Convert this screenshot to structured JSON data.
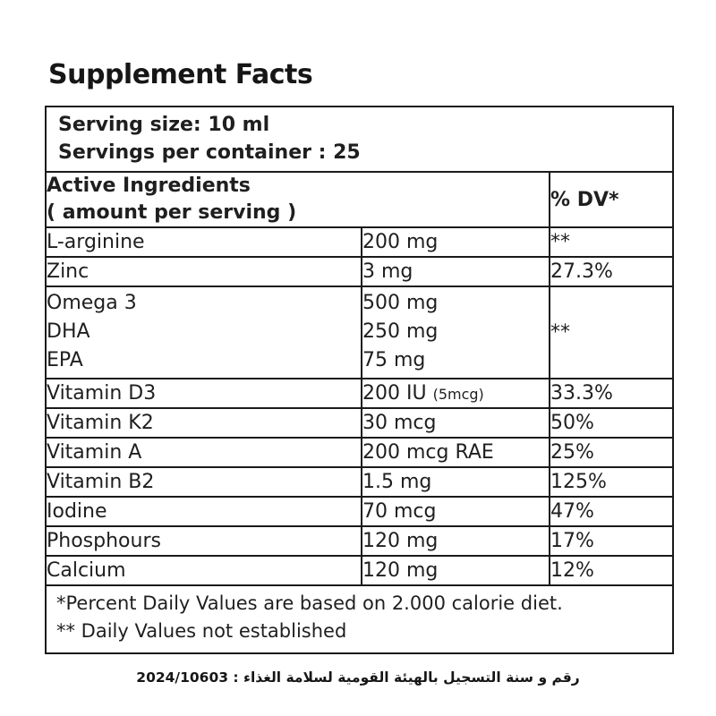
{
  "title": "Supplement Facts",
  "colors": {
    "text": "#1f1f1f",
    "border": "#1a1a1a",
    "background": "#ffffff"
  },
  "serving": {
    "size_line": "Serving size: 10 ml",
    "container_line": "Servings per container : 25"
  },
  "table": {
    "header": {
      "col1_line1": "Active Ingredients",
      "col1_line2": "( amount per serving )",
      "dv_label": "% DV*"
    },
    "rows": [
      {
        "name": "L-arginine",
        "amount": "200 mg",
        "dv": "**"
      },
      {
        "name": "Zinc",
        "amount": "3 mg",
        "dv": "27.3%"
      },
      {
        "name_lines": [
          "Omega 3",
          "DHA",
          "EPA"
        ],
        "amount_lines": [
          "500 mg",
          "250 mg",
          "75 mg"
        ],
        "dv": "**"
      },
      {
        "name": "Vitamin D3",
        "amount": "200 IU",
        "amount_note": "(5mcg)",
        "dv": "33.3%"
      },
      {
        "name": "Vitamin K2",
        "amount": "30 mcg",
        "dv": "50%"
      },
      {
        "name": "Vitamin A",
        "amount": "200 mcg RAE",
        "dv": "25%"
      },
      {
        "name": "Vitamin B2",
        "amount": "1.5 mg",
        "dv": "125%"
      },
      {
        "name": "Iodine",
        "amount": "70 mcg",
        "dv": "47%"
      },
      {
        "name": "Phosphours",
        "amount": "120 mg",
        "dv": "17%"
      },
      {
        "name": "Calcium",
        "amount": "120 mg",
        "dv": "12%"
      }
    ],
    "footnotes": [
      "*Percent Daily Values are based on 2.000 calorie diet.",
      "** Daily Values  not established"
    ]
  },
  "registration_line": "رقم و سنة التسجيل بالهيئة القومية لسلامة الغذاء : 2024/10603"
}
